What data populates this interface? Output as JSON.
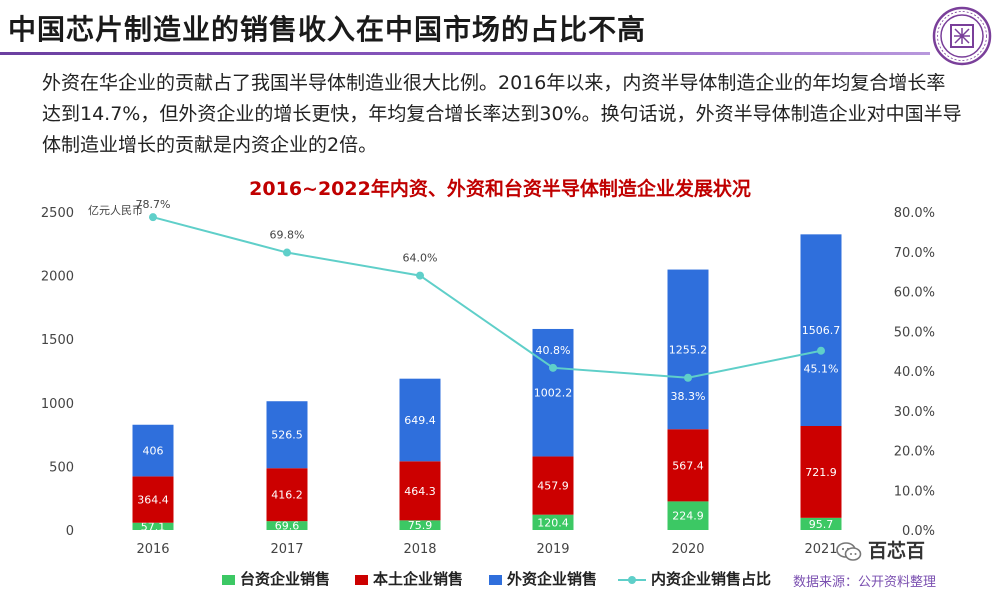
{
  "slide": {
    "title": "中国芯片制造业的销售收入在中国市场的占比不高",
    "paragraph": "外资在华企业的贡献占了我国半导体制造业很大比例。2016年以来，内资半导体制造企业的年均复合增长率达到14.7%，但外资企业的增长更快，年均复合增长率达到30%。换句话说，外资半导体制造企业对中国半导体制造业增长的贡献是内资企业的2倍。",
    "source": "数据来源：公开资料整理",
    "brand": "百芯百",
    "brand_icon": "wechat-icon",
    "seal_icon": "university-seal-icon"
  },
  "chart_data": {
    "type": "bar",
    "title": "2016~2022年内资、外资和台资半导体制造企业发展状况",
    "ylabel": "亿元人民币",
    "ylim": [
      0,
      2500
    ],
    "y2lim": [
      0,
      80
    ],
    "yticks": [
      "0",
      "500",
      "1000",
      "1500",
      "2000",
      "2500"
    ],
    "y2ticks": [
      "0.0%",
      "10.0%",
      "20.0%",
      "30.0%",
      "40.0%",
      "50.0%",
      "60.0%",
      "70.0%",
      "80.0%"
    ],
    "categories": [
      "2016",
      "2017",
      "2018",
      "2019",
      "2020",
      "2021"
    ],
    "stacked": true,
    "legend_position": "bottom",
    "grid": false,
    "series": [
      {
        "name": "台资企业销售",
        "color": "#3cc864",
        "values": [
          57.1,
          69.6,
          75.9,
          120.4,
          224.9,
          95.7
        ],
        "labels": [
          "57.1",
          "69.6",
          "75.9",
          "120.4",
          "224.9",
          "95.7"
        ]
      },
      {
        "name": "本土企业销售",
        "color": "#cc0000",
        "values": [
          364.4,
          416.2,
          464.3,
          457.9,
          567.4,
          721.9
        ],
        "labels": [
          "364.4",
          "416.2",
          "464.3",
          "457.9",
          "567.4",
          "721.9"
        ]
      },
      {
        "name": "外资企业销售",
        "color": "#2f6fdc",
        "values": [
          406,
          526.5,
          649.4,
          1002.2,
          1255.2,
          1506.7
        ],
        "labels": [
          "406",
          "526.5",
          "649.4",
          "1002.2",
          "1255.2",
          "1506.7"
        ]
      }
    ],
    "line_series": {
      "name": "内资企业销售占比",
      "color": "#5fcfc9",
      "axis": "right",
      "values": [
        78.7,
        69.8,
        64.0,
        40.8,
        38.3,
        45.1
      ],
      "labels": [
        "78.7%",
        "69.8%",
        "64.0%",
        "40.8%",
        "38.3%",
        "45.1%"
      ]
    }
  }
}
